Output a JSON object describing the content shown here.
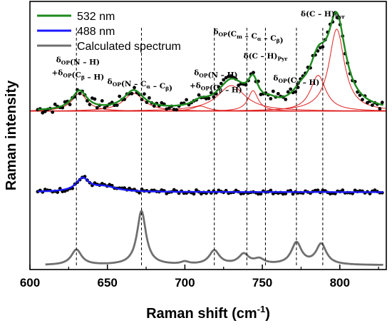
{
  "chart_data": {
    "type": "line",
    "xlabel": "Raman shift (cm",
    "xlabel_sup": "-1",
    "xlabel_end": ")",
    "ylabel": "Raman intensity",
    "xlim": [
      600,
      830
    ],
    "x_ticks": [
      "600",
      "650",
      "700",
      "750",
      "800"
    ],
    "legend_position": "top-left",
    "series": [
      {
        "name": "532 nm",
        "color": "#1e8a1e",
        "offset": 0.6,
        "noise": 0.018,
        "peaks": [
          [
            632,
            0.075,
            6
          ],
          [
            667,
            0.075,
            8
          ],
          [
            710,
            0.02,
            6
          ],
          [
            730,
            0.11,
            11
          ],
          [
            744,
            0.085,
            4
          ],
          [
            755,
            0.015,
            5
          ],
          [
            775,
            0.04,
            7
          ],
          [
            786,
            0.15,
            7
          ],
          [
            798,
            0.34,
            7
          ]
        ]
      },
      {
        "name": "488 nm",
        "color": "#1a1aff",
        "offset": 0.285,
        "noise": 0.008,
        "peaks": [
          [
            634,
            0.05,
            5
          ],
          [
            648,
            0.02,
            10
          ]
        ]
      },
      {
        "name": "Calculated spectrum",
        "color": "#707070",
        "offset": 0.0,
        "peaks": [
          [
            630,
            0.06,
            4
          ],
          [
            672,
            0.21,
            3.5
          ],
          [
            700,
            0.01,
            3
          ],
          [
            719,
            0.055,
            4
          ],
          [
            738,
            0.04,
            4
          ],
          [
            748,
            0.02,
            4
          ],
          [
            772,
            0.085,
            4
          ],
          [
            788,
            0.08,
            4
          ]
        ]
      }
    ],
    "fit_bands": [
      {
        "center": 632,
        "amp": 0.07,
        "w": 6
      },
      {
        "center": 667,
        "amp": 0.07,
        "w": 8
      },
      {
        "center": 710,
        "amp": 0.02,
        "w": 6
      },
      {
        "center": 730,
        "amp": 0.1,
        "w": 11
      },
      {
        "center": 744,
        "amp": 0.08,
        "w": 4
      },
      {
        "center": 786,
        "amp": 0.14,
        "w": 6
      },
      {
        "center": 798,
        "amp": 0.32,
        "w": 6
      }
    ],
    "fit_color": "#e02020",
    "markers": [
      630,
      672,
      719,
      740,
      752,
      772,
      789
    ],
    "annotations": [
      {
        "lines": [
          "δ<sub>OP</sub>(N – H)",
          "+δ<sub>OP</sub>(C<sub>β</sub> – H)"
        ],
        "x": 631,
        "y": 0.79
      },
      {
        "lines": [
          "δ<sub>OP</sub>(N – C<sub>α</sub> – C<sub>β</sub>)"
        ],
        "x": 671,
        "y": 0.706
      },
      {
        "lines": [
          "δ<sub>OP</sub>(N – H)",
          "+δ<sub>OP</sub>(C<sub>β</sub> – H)"
        ],
        "x": 720,
        "y": 0.74
      },
      {
        "lines": [
          "δ<sub>OP</sub>(C<sub>m</sub> – C<sub>α</sub> – C<sub>β</sub>)"
        ],
        "x": 741,
        "y": 0.9
      },
      {
        "lines": [
          "δ(C – H)<sub>Pyr</sub>"
        ],
        "x": 752,
        "y": 0.806
      },
      {
        "lines": [
          "δ<sub>OP</sub>(C<sub>β</sub> – H)"
        ],
        "x": 772,
        "y": 0.72
      },
      {
        "lines": [
          "δ(C – H)<sub>Pyr</sub>"
        ],
        "x": 789,
        "y": 0.97
      }
    ]
  }
}
